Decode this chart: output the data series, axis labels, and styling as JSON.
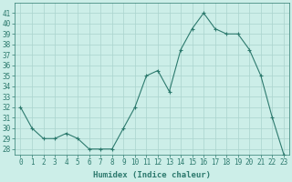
{
  "x": [
    0,
    1,
    2,
    3,
    4,
    5,
    6,
    7,
    8,
    9,
    10,
    11,
    12,
    13,
    14,
    15,
    16,
    17,
    18,
    19,
    20,
    21,
    22,
    23
  ],
  "y": [
    32,
    30,
    29,
    29,
    29.5,
    29,
    28,
    28,
    28,
    30,
    32,
    35,
    35.5,
    33.5,
    37.5,
    39.5,
    41,
    39.5,
    39,
    39,
    37.5,
    35,
    31,
    27.5
  ],
  "line_color": "#2d7a6e",
  "marker_color": "#2d7a6e",
  "bg_color": "#cceee8",
  "grid_color": "#aad4ce",
  "xlabel": "Humidex (Indice chaleur)",
  "ylabel_ticks": [
    28,
    29,
    30,
    31,
    32,
    33,
    34,
    35,
    36,
    37,
    38,
    39,
    40,
    41
  ],
  "ylim": [
    27.5,
    42
  ],
  "xlim": [
    -0.5,
    23.5
  ],
  "tick_color": "#2d7a6e",
  "label_color": "#2d7a6e",
  "font_size": 5.5,
  "xlabel_fontsize": 6.5
}
